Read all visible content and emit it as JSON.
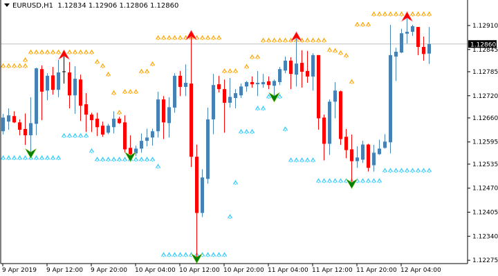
{
  "header": {
    "symbol": "EURUSD,H1",
    "open": "1.12834",
    "high": "1.12906",
    "low": "1.12806",
    "close": "1.12860"
  },
  "colors": {
    "bull": "#4682b4",
    "bear": "#ff0000",
    "doji": "#000000",
    "resistance": "#ffa500",
    "support": "#33ccff",
    "sell_arrow": "#ff0000",
    "buy_arrow": "#008000",
    "price_line": "#c0c0c0"
  },
  "chart_data": {
    "type": "candlestick",
    "title": "EURUSD,H1",
    "ylim": [
      1.12266,
      1.12979
    ],
    "current_price": "1.12860",
    "price_ticks": [
      "1.12910",
      "1.12845",
      "1.12785",
      "1.12720",
      "1.12660",
      "1.12595",
      "1.12535",
      "1.12470",
      "1.12405",
      "1.12340",
      "1.12275"
    ],
    "time_labels": [
      {
        "index": 0,
        "label": "9 Apr 2019"
      },
      {
        "index": 8,
        "label": "9 Apr 12:00"
      },
      {
        "index": 16,
        "label": "9 Apr 20:00"
      },
      {
        "index": 24,
        "label": "10 Apr 04:00"
      },
      {
        "index": 32,
        "label": "10 Apr 12:00"
      },
      {
        "index": 40,
        "label": "10 Apr 20:00"
      },
      {
        "index": 48,
        "label": "11 Apr 04:00"
      },
      {
        "index": 56,
        "label": "11 Apr 12:00"
      },
      {
        "index": 64,
        "label": "11 Apr 20:00"
      },
      {
        "index": 72,
        "label": "12 Apr 04:00"
      }
    ],
    "ohlc": [
      [
        1.12624,
        1.12671,
        1.12615,
        1.12661
      ],
      [
        1.1265,
        1.12686,
        1.12628,
        1.12667
      ],
      [
        1.12665,
        1.12678,
        1.12646,
        1.12648
      ],
      [
        1.12648,
        1.12656,
        1.12613,
        1.12628
      ],
      [
        1.1263,
        1.12672,
        1.12587,
        1.12613
      ],
      [
        1.12613,
        1.12716,
        1.12562,
        1.12646
      ],
      [
        1.12644,
        1.12796,
        1.12613,
        1.12794
      ],
      [
        1.12792,
        1.12802,
        1.12654,
        1.12731
      ],
      [
        1.12734,
        1.12781,
        1.12708,
        1.12774
      ],
      [
        1.12775,
        1.12798,
        1.12723,
        1.12736
      ],
      [
        1.12736,
        1.12817,
        1.12716,
        1.12783
      ],
      [
        1.12785,
        1.12833,
        1.12753,
        1.12785
      ],
      [
        1.12783,
        1.12811,
        1.12686,
        1.12721
      ],
      [
        1.12721,
        1.128,
        1.12671,
        1.12766
      ],
      [
        1.12764,
        1.12777,
        1.12652,
        1.12693
      ],
      [
        1.12697,
        1.12727,
        1.12622,
        1.12669
      ],
      [
        1.12669,
        1.12674,
        1.12622,
        1.12654
      ],
      [
        1.12658,
        1.12674,
        1.12611,
        1.12635
      ],
      [
        1.12639,
        1.1265,
        1.12609,
        1.12615
      ],
      [
        1.1262,
        1.12644,
        1.12616,
        1.12639
      ],
      [
        1.12635,
        1.12678,
        1.12618,
        1.12658
      ],
      [
        1.12658,
        1.12663,
        1.12644,
        1.12646
      ],
      [
        1.12648,
        1.12667,
        1.12566,
        1.12575
      ],
      [
        1.12579,
        1.12613,
        1.12553,
        1.12562
      ],
      [
        1.12564,
        1.12585,
        1.12557,
        1.12577
      ],
      [
        1.12577,
        1.12618,
        1.12566,
        1.12598
      ],
      [
        1.12598,
        1.12631,
        1.12583,
        1.12607
      ],
      [
        1.12607,
        1.12631,
        1.12585,
        1.12624
      ],
      [
        1.12624,
        1.12731,
        1.12607,
        1.1271
      ],
      [
        1.1271,
        1.12719,
        1.12603,
        1.12648
      ],
      [
        1.12646,
        1.12716,
        1.12607,
        1.12689
      ],
      [
        1.12688,
        1.12781,
        1.12674,
        1.12774
      ],
      [
        1.12774,
        1.12787,
        1.12719,
        1.12744
      ],
      [
        1.12744,
        1.12805,
        1.12719,
        1.12755
      ],
      [
        1.12753,
        1.12886,
        1.12527,
        1.12555
      ],
      [
        1.12555,
        1.12588,
        1.12278,
        1.12403
      ],
      [
        1.12403,
        1.12521,
        1.12392,
        1.12499
      ],
      [
        1.12495,
        1.12688,
        1.12482,
        1.12656
      ],
      [
        1.12656,
        1.12779,
        1.12616,
        1.12749
      ],
      [
        1.12751,
        1.12774,
        1.12729,
        1.12738
      ],
      [
        1.12738,
        1.12764,
        1.1262,
        1.12701
      ],
      [
        1.12701,
        1.12768,
        1.12688,
        1.12717
      ],
      [
        1.12714,
        1.12738,
        1.12686,
        1.12727
      ],
      [
        1.12721,
        1.12753,
        1.12714,
        1.12745
      ],
      [
        1.12745,
        1.1276,
        1.12731,
        1.12757
      ],
      [
        1.12757,
        1.12772,
        1.12742,
        1.12751
      ],
      [
        1.12751,
        1.12787,
        1.12719,
        1.12755
      ],
      [
        1.12751,
        1.12779,
        1.12742,
        1.12757
      ],
      [
        1.12759,
        1.12772,
        1.12738,
        1.12749
      ],
      [
        1.12747,
        1.12764,
        1.12714,
        1.1276
      ],
      [
        1.12757,
        1.12798,
        1.12749,
        1.12792
      ],
      [
        1.12788,
        1.12826,
        1.12781,
        1.12815
      ],
      [
        1.12815,
        1.12824,
        1.12738,
        1.12779
      ],
      [
        1.12777,
        1.12882,
        1.12745,
        1.12807
      ],
      [
        1.12809,
        1.12843,
        1.12742,
        1.12785
      ],
      [
        1.12787,
        1.12841,
        1.12755,
        1.12772
      ],
      [
        1.12772,
        1.12835,
        1.12734,
        1.1283
      ],
      [
        1.1283,
        1.1283,
        1.12628,
        1.12659
      ],
      [
        1.12661,
        1.12669,
        1.12545,
        1.1259
      ],
      [
        1.1259,
        1.1271,
        1.1256,
        1.12704
      ],
      [
        1.12704,
        1.12757,
        1.12659,
        1.12734
      ],
      [
        1.12732,
        1.12734,
        1.12587,
        1.12603
      ],
      [
        1.12609,
        1.1263,
        1.12551,
        1.12573
      ],
      [
        1.12575,
        1.12615,
        1.1248,
        1.12543
      ],
      [
        1.12543,
        1.12583,
        1.12525,
        1.12553
      ],
      [
        1.12547,
        1.12598,
        1.12538,
        1.12588
      ],
      [
        1.12588,
        1.1259,
        1.12515,
        1.12525
      ],
      [
        1.12532,
        1.12587,
        1.12515,
        1.12566
      ],
      [
        1.12562,
        1.12601,
        1.1256,
        1.12577
      ],
      [
        1.12579,
        1.12616,
        1.12577,
        1.12596
      ],
      [
        1.12594,
        1.12912,
        1.12564,
        1.1283
      ],
      [
        1.12826,
        1.1285,
        1.1276,
        1.12839
      ],
      [
        1.12837,
        1.12901,
        1.12835,
        1.12889
      ],
      [
        1.12888,
        1.12936,
        1.12861,
        1.12893
      ],
      [
        1.12893,
        1.12912,
        1.12882,
        1.12908
      ],
      [
        1.12906,
        1.12906,
        1.1283,
        1.12852
      ],
      [
        1.12852,
        1.1288,
        1.12815,
        1.12833
      ],
      [
        1.12834,
        1.12906,
        1.12806,
        1.1286
      ]
    ],
    "sell_signals": [
      11,
      34,
      53,
      73
    ],
    "buy_signals": [
      5,
      23,
      35,
      49,
      63
    ],
    "resistance_markers": [
      [
        0,
        4,
        1.12802
      ],
      [
        4,
        4,
        1.12818
      ],
      [
        5,
        16,
        1.12839
      ],
      [
        17,
        17,
        1.12813
      ],
      [
        18,
        18,
        1.12802
      ],
      [
        19,
        19,
        1.12779
      ],
      [
        20,
        20,
        1.12729
      ],
      [
        21,
        21,
        1.12676
      ],
      [
        22,
        24,
        1.12732
      ],
      [
        25,
        26,
        1.12787
      ],
      [
        27,
        27,
        1.12807
      ],
      [
        28,
        39,
        1.12878
      ],
      [
        40,
        42,
        1.12788
      ],
      [
        44,
        44,
        1.128
      ],
      [
        45,
        46,
        1.12826
      ],
      [
        47,
        58,
        1.12871
      ],
      [
        59,
        59,
        1.12845
      ],
      [
        60,
        60,
        1.12843
      ],
      [
        61,
        61,
        1.12837
      ],
      [
        62,
        62,
        1.1283
      ],
      [
        63,
        63,
        1.12759
      ],
      [
        64,
        66,
        1.12914
      ],
      [
        67,
        77,
        1.12942
      ]
    ],
    "support_markers": [
      [
        0,
        10,
        1.12553
      ],
      [
        11,
        15,
        1.12613
      ],
      [
        16,
        16,
        1.12572
      ],
      [
        17,
        27,
        1.12549
      ],
      [
        28,
        28,
        1.1253
      ],
      [
        29,
        40,
        1.12291
      ],
      [
        41,
        41,
        1.12394
      ],
      [
        42,
        42,
        1.12486
      ],
      [
        43,
        45,
        1.12624
      ],
      [
        46,
        47,
        1.12687
      ],
      [
        48,
        50,
        1.12719
      ],
      [
        51,
        51,
        1.12631
      ],
      [
        52,
        56,
        1.12547
      ],
      [
        57,
        68,
        1.12491
      ],
      [
        69,
        77,
        1.12519
      ]
    ]
  }
}
